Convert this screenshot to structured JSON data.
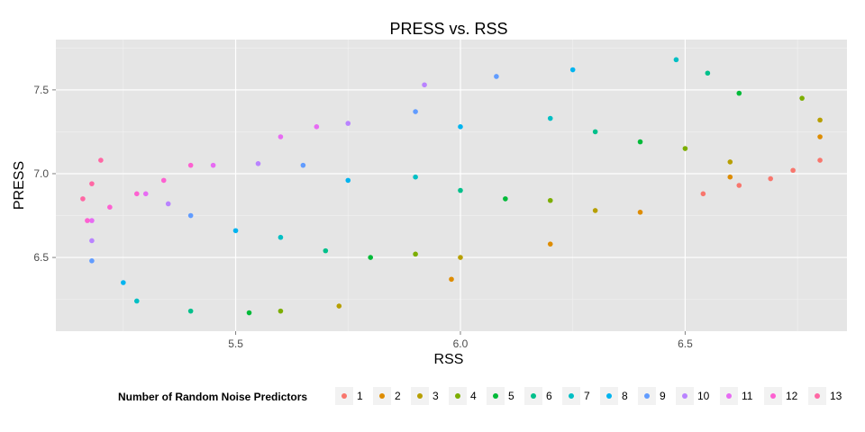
{
  "chart_data": {
    "type": "scatter",
    "title": "PRESS vs. RSS",
    "xlabel": "RSS",
    "ylabel": "PRESS",
    "xlim": [
      5.1,
      6.86
    ],
    "ylim": [
      6.06,
      7.8
    ],
    "x_ticks": [
      5.5,
      6.0,
      6.5
    ],
    "x_tick_labels": [
      "5.5",
      "6.0",
      "6.5"
    ],
    "y_ticks": [
      6.5,
      7.0,
      7.5
    ],
    "y_tick_labels": [
      "6.5",
      "7.0",
      "7.5"
    ],
    "background": "#e5e5e5",
    "grid": true,
    "legend": {
      "title": "Number of Random Noise Predictors",
      "position": "bottom"
    },
    "series": [
      {
        "name": "1",
        "color": "#F8766D",
        "x": [
          6.54,
          6.62,
          6.69,
          6.74,
          6.8
        ],
        "y": [
          6.88,
          6.93,
          6.97,
          7.02,
          7.08
        ]
      },
      {
        "name": "2",
        "color": "#DE8C00",
        "x": [
          5.98,
          6.2,
          6.4,
          6.6,
          6.8
        ],
        "y": [
          6.37,
          6.58,
          6.77,
          6.98,
          7.22
        ]
      },
      {
        "name": "3",
        "color": "#B79F00",
        "x": [
          5.73,
          6.0,
          6.3,
          6.6,
          6.8
        ],
        "y": [
          6.21,
          6.5,
          6.78,
          7.07,
          7.32
        ]
      },
      {
        "name": "4",
        "color": "#7CAE00",
        "x": [
          5.6,
          5.9,
          6.2,
          6.5,
          6.76
        ],
        "y": [
          6.18,
          6.52,
          6.84,
          7.15,
          7.45
        ]
      },
      {
        "name": "5",
        "color": "#00BA38",
        "x": [
          5.53,
          5.8,
          6.1,
          6.4,
          6.62
        ],
        "y": [
          6.17,
          6.5,
          6.85,
          7.19,
          7.48
        ]
      },
      {
        "name": "6",
        "color": "#00C08B",
        "x": [
          5.4,
          5.7,
          6.0,
          6.3,
          6.55
        ],
        "y": [
          6.18,
          6.54,
          6.9,
          7.25,
          7.6
        ]
      },
      {
        "name": "7",
        "color": "#00BFC4",
        "x": [
          5.28,
          5.6,
          5.9,
          6.2,
          6.48
        ],
        "y": [
          6.24,
          6.62,
          6.98,
          7.33,
          7.68
        ]
      },
      {
        "name": "8",
        "color": "#00B4F0",
        "x": [
          5.25,
          5.5,
          5.75,
          6.0,
          6.25
        ],
        "y": [
          6.35,
          6.66,
          6.96,
          7.28,
          7.62
        ]
      },
      {
        "name": "9",
        "color": "#619CFF",
        "x": [
          5.18,
          5.4,
          5.65,
          5.9,
          6.08
        ],
        "y": [
          6.48,
          6.75,
          7.05,
          7.37,
          7.58
        ]
      },
      {
        "name": "10",
        "color": "#B983FF",
        "x": [
          5.18,
          5.35,
          5.55,
          5.75,
          5.92
        ],
        "y": [
          6.6,
          6.82,
          7.06,
          7.3,
          7.53
        ]
      },
      {
        "name": "11",
        "color": "#E76BF3",
        "x": [
          5.18,
          5.3,
          5.45,
          5.6,
          5.68
        ],
        "y": [
          6.72,
          6.88,
          7.05,
          7.22,
          7.28
        ]
      },
      {
        "name": "12",
        "color": "#FD61D1",
        "x": [
          5.17,
          5.22,
          5.28,
          5.34,
          5.4
        ],
        "y": [
          6.72,
          6.8,
          6.88,
          6.96,
          7.05
        ]
      },
      {
        "name": "13",
        "color": "#FF67A4",
        "x": [
          5.16,
          5.18,
          5.2
        ],
        "y": [
          6.85,
          6.94,
          7.08
        ]
      }
    ]
  }
}
